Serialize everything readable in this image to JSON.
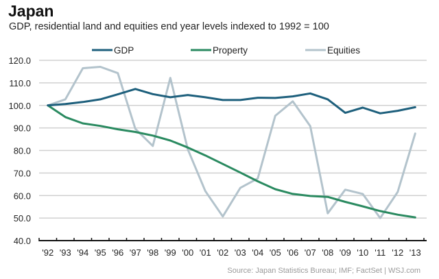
{
  "chart_data": {
    "type": "line",
    "title": "Japan",
    "subtitle": "GDP, residential land and equities end year levels indexed to 1992 = 100",
    "xlabel": "",
    "ylabel": "",
    "categories": [
      "'92",
      "'93",
      "'94",
      "'95",
      "'96",
      "'97",
      "'98",
      "'99",
      "'00",
      "'01",
      "'02",
      "'03",
      "'04",
      "'05",
      "'06",
      "'07",
      "'08",
      "'09",
      "'10",
      "'11",
      "'12",
      "'13"
    ],
    "ylim": [
      40,
      120
    ],
    "yticks": [
      40,
      50,
      60,
      70,
      80,
      90,
      100,
      110,
      120
    ],
    "ytick_labels": [
      "40.0",
      "50.0",
      "60.0",
      "70.0",
      "80.0",
      "90.0",
      "100.0",
      "110.0",
      "120.0"
    ],
    "grid": true,
    "legend_position": "top",
    "series": [
      {
        "name": "GDP",
        "color": "#1d5f7c",
        "values": [
          100,
          100.6,
          101.5,
          102.7,
          104.9,
          107.3,
          105.0,
          103.6,
          104.6,
          103.6,
          102.4,
          102.4,
          103.4,
          103.3,
          104.0,
          105.3,
          102.7,
          96.7,
          99.0,
          96.5,
          97.6,
          99.2
        ]
      },
      {
        "name": "Property",
        "color": "#2a8a60",
        "values": [
          100,
          94.8,
          92.0,
          90.9,
          89.4,
          88.2,
          86.6,
          84.4,
          81.3,
          77.8,
          74.0,
          70.2,
          66.3,
          62.8,
          60.7,
          59.8,
          59.4,
          57.2,
          55.2,
          53.1,
          51.5,
          50.3
        ]
      },
      {
        "name": "Equities",
        "color": "#b3c3cc",
        "values": [
          100,
          102.7,
          116.5,
          117.1,
          114.3,
          89.6,
          82.0,
          112.2,
          80.5,
          62.0,
          50.7,
          63.4,
          67.6,
          95.4,
          101.8,
          90.8,
          52.1,
          62.6,
          60.7,
          50.0,
          61.6,
          87.5
        ]
      }
    ],
    "source": "Source: Japan Statistics Bureau; IMF; FactSet  |  WSJ.com"
  }
}
